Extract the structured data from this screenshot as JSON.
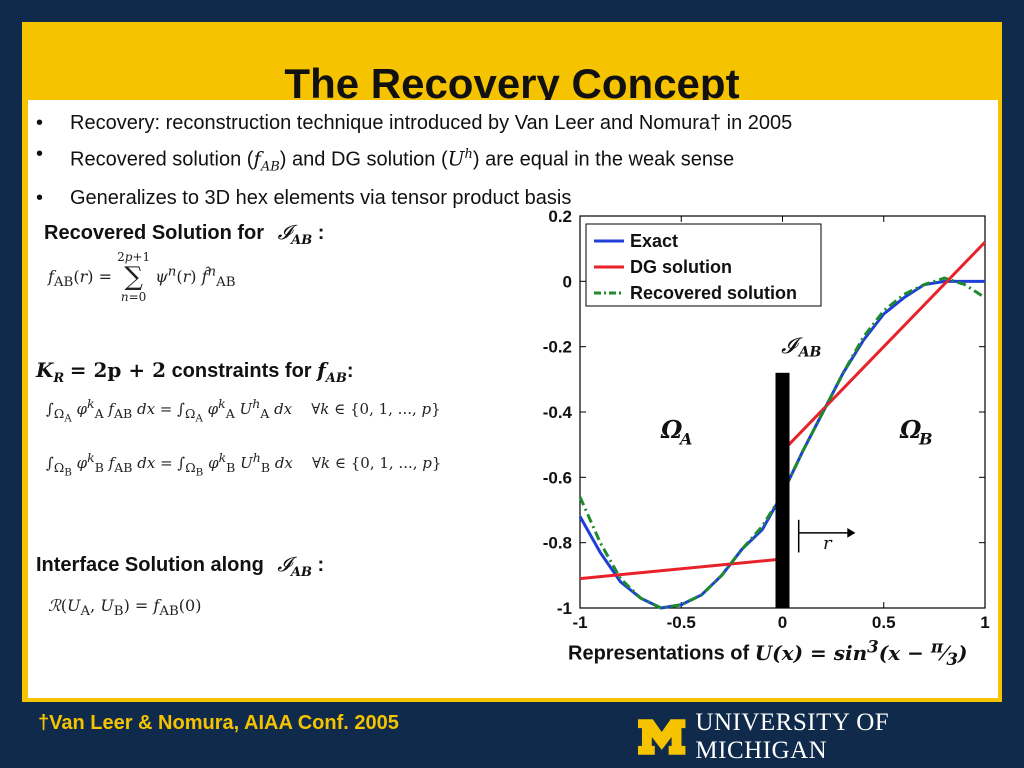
{
  "slide": {
    "title": "The Recovery Concept",
    "bullets": [
      "Recovery: reconstruction technique introduced by Van Leer and Nomura† in 2005",
      "Recovered solution (",
      "Generalizes to 3D hex elements via tensor product basis"
    ],
    "bullet2": {
      "part_a": "Recovered solution (",
      "sym1": "f",
      "sym1_sub": "AB",
      "part_b": ") and DG solution (",
      "sym2": "U",
      "sym2_sup": "h",
      "part_c": ") are equal in the weak sense"
    },
    "recovered_heading": "Recovered Solution for",
    "recovered_formula": "f_AB(r) = Σ_{n=0}^{2p+1} ψ^n(r) f̂^n_AB",
    "constraints_heading": "constraints for",
    "constraints_lhs": "K",
    "constraints_eq": "= 2p + 2",
    "constraints_target": "f",
    "constraint_formulas": [
      "∫_ΩA φ^k_A f_AB dx = ∫_ΩA φ^k_A U^h_A dx   ∀k ∈ {0,1,...,p}",
      "∫_ΩB φ^k_B f_AB dx = ∫_ΩB φ^k_B U^h_B dx   ∀k ∈ {0,1,...,p}"
    ],
    "interface_heading": "Interface Solution along",
    "interface_formula": "R(U_A, U_B) = f_AB(0)",
    "caption_text": "Representations of",
    "caption_math": "U(x) = sin³(x − π/3)",
    "footnote": "†Van Leer & Nomura, AIAA Conf. 2005",
    "university": "UNIVERSITY OF MICHIGAN",
    "colors": {
      "background": "#0f2a4a",
      "frame": "#f5c300",
      "exact": "#1f3fd8",
      "dg": "#e8222a",
      "recovered": "#1e8a2e"
    }
  },
  "chart_data": {
    "type": "line",
    "xlim": [
      -1,
      1
    ],
    "ylim": [
      -1,
      0.2
    ],
    "xticks": [
      "-1",
      "-0.5",
      "0",
      "0.5",
      "1"
    ],
    "yticks": [
      "0.2",
      "0",
      "-0.2",
      "-0.4",
      "-0.6",
      "-0.8",
      "-1"
    ],
    "legend": [
      "Exact",
      "DG solution",
      "Recovered solution"
    ],
    "legend_position": "top-left",
    "interface_label": "I_AB",
    "region_left": "Ω_A",
    "region_right": "Ω_B",
    "r_label": "r",
    "series": [
      {
        "name": "Exact",
        "function": "sin^3(x - pi/3)",
        "x": [
          -1,
          -0.9,
          -0.8,
          -0.7,
          -0.6,
          -0.5,
          -0.4,
          -0.3,
          -0.2,
          -0.1,
          0,
          0.1,
          0.2,
          0.3,
          0.4,
          0.5,
          0.6,
          0.7,
          0.8,
          0.9,
          1
        ],
        "y": [
          -0.72,
          -0.83,
          -0.92,
          -0.97,
          -1.0,
          -0.99,
          -0.96,
          -0.9,
          -0.82,
          -0.76,
          -0.65,
          -0.52,
          -0.4,
          -0.28,
          -0.18,
          -0.1,
          -0.05,
          -0.01,
          0.0,
          0.0,
          0.0
        ]
      },
      {
        "name": "DG solution",
        "segments": [
          {
            "x": [
              -1,
              0
            ],
            "y": [
              -0.91,
              -0.85
            ]
          },
          {
            "x": [
              0,
              1
            ],
            "y": [
              -0.52,
              0.12
            ]
          }
        ]
      },
      {
        "name": "Recovered solution",
        "x": [
          -1,
          -0.9,
          -0.8,
          -0.7,
          -0.6,
          -0.5,
          -0.4,
          -0.3,
          -0.2,
          -0.1,
          0,
          0.1,
          0.2,
          0.3,
          0.4,
          0.5,
          0.6,
          0.7,
          0.8,
          0.9,
          1
        ],
        "y": [
          -0.66,
          -0.8,
          -0.91,
          -0.97,
          -1.0,
          -0.99,
          -0.96,
          -0.9,
          -0.82,
          -0.75,
          -0.65,
          -0.52,
          -0.4,
          -0.28,
          -0.17,
          -0.09,
          -0.04,
          -0.01,
          0.01,
          -0.01,
          -0.05
        ]
      }
    ]
  }
}
